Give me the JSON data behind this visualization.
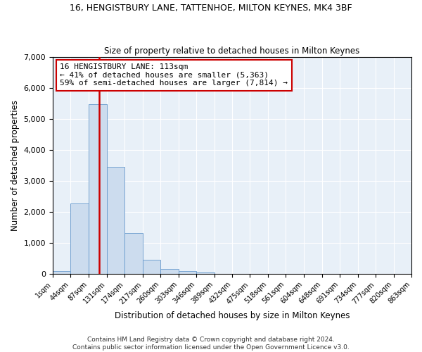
{
  "title": "16, HENGISTBURY LANE, TATTENHOE, MILTON KEYNES, MK4 3BF",
  "subtitle": "Size of property relative to detached houses in Milton Keynes",
  "xlabel": "Distribution of detached houses by size in Milton Keynes",
  "ylabel": "Number of detached properties",
  "bar_color": "#ccdcee",
  "bar_edge_color": "#6699cc",
  "background_color": "#e8f0f8",
  "grid_color": "#ffffff",
  "footnote": "Contains HM Land Registry data © Crown copyright and database right 2024.\nContains public sector information licensed under the Open Government Licence v3.0.",
  "bin_edges": [
    1,
    44,
    87,
    131,
    174,
    217,
    260,
    303,
    346,
    389,
    432,
    475,
    518,
    561,
    604,
    648,
    691,
    734,
    777,
    820,
    863
  ],
  "bar_heights": [
    80,
    2280,
    5480,
    3450,
    1310,
    460,
    150,
    90,
    45,
    0,
    0,
    0,
    0,
    0,
    0,
    0,
    0,
    0,
    0,
    0
  ],
  "property_size": 113,
  "vline_color": "#cc0000",
  "annotation_line1": "16 HENGISTBURY LANE: 113sqm",
  "annotation_line2": "← 41% of detached houses are smaller (5,363)",
  "annotation_line3": "59% of semi-detached houses are larger (7,814) →",
  "annotation_box_color": "#cc0000",
  "ylim": [
    0,
    7000
  ],
  "yticks": [
    0,
    1000,
    2000,
    3000,
    4000,
    5000,
    6000,
    7000
  ]
}
